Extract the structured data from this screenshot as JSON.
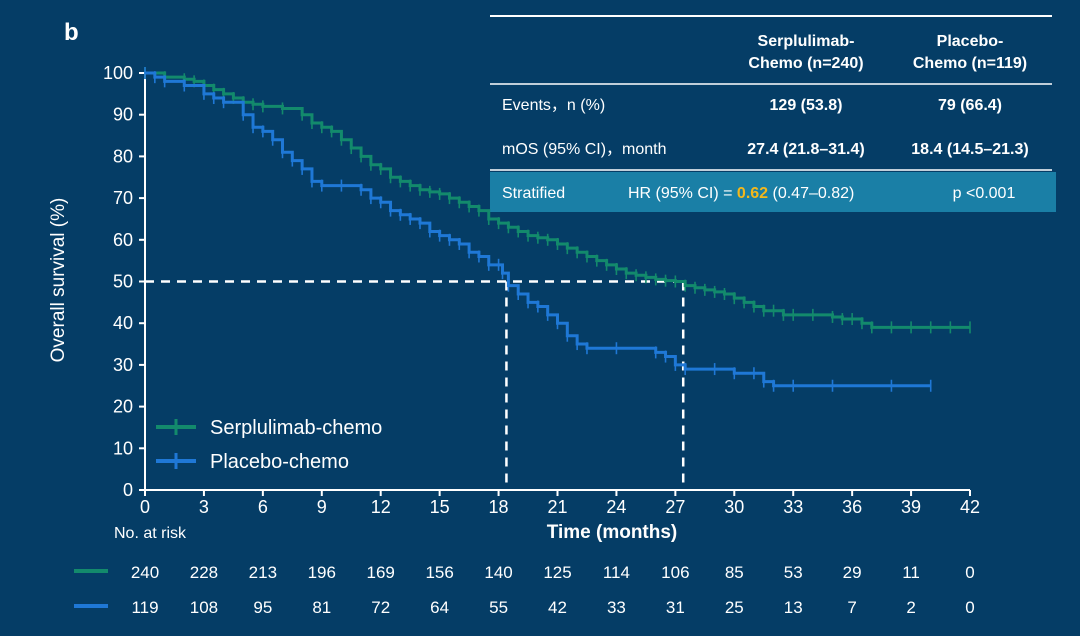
{
  "panel_label": "b",
  "colors": {
    "background": "#053d66",
    "serplulimab": "#138a6c",
    "placebo": "#1f78d6",
    "hr_highlight": "#f3b81c",
    "hr_row_bg": "#1a7fa6"
  },
  "table": {
    "header_serp_line1": "Serplulimab-",
    "header_serp_line2": "Chemo (n=240)",
    "header_plac_line1": "Placebo-",
    "header_plac_line2": "Chemo (n=119)",
    "rows": [
      {
        "label": "Events，n (%)",
        "serp": "129 (53.8)",
        "plac": "79 (66.4)"
      },
      {
        "label": "mOS (95% CI)，month",
        "serp": "27.4 (21.8–31.4)",
        "plac": "18.4 (14.5–21.3)"
      }
    ],
    "stratified": {
      "label": "Stratified",
      "hr_prefix": "HR (95% CI) = ",
      "hr_value": "0.62",
      "hr_ci": " (0.47–0.82)",
      "p": "p <0.001"
    }
  },
  "at_risk": {
    "title": "No. at risk",
    "serplulimab": [
      "240",
      "228",
      "213",
      "196",
      "169",
      "156",
      "140",
      "125",
      "114",
      "106",
      "85",
      "53",
      "29",
      "11",
      "0"
    ],
    "placebo": [
      "119",
      "108",
      "95",
      "81",
      "72",
      "64",
      "55",
      "42",
      "33",
      "31",
      "25",
      "13",
      "7",
      "2",
      "0"
    ]
  },
  "chart_data": {
    "type": "line",
    "xlabel": "Time (months)",
    "ylabel": "Overall survival (%)",
    "xlim": [
      0,
      42
    ],
    "ylim": [
      0,
      100
    ],
    "x_ticks": [
      "0",
      "3",
      "6",
      "9",
      "12",
      "15",
      "18",
      "21",
      "24",
      "27",
      "30",
      "33",
      "36",
      "39",
      "42"
    ],
    "y_ticks": [
      "0",
      "10",
      "20",
      "30",
      "40",
      "50",
      "60",
      "70",
      "80",
      "90",
      "100"
    ],
    "legend_position": "bottom-left",
    "series": [
      {
        "name": "Serplulimab-chemo",
        "color": "#138a6c",
        "median": 27.4,
        "x": [
          0,
          1,
          2,
          2.5,
          3,
          3.5,
          4,
          4.5,
          5,
          5.5,
          6,
          7,
          8,
          8.5,
          9,
          9.5,
          10,
          10.5,
          11,
          11.5,
          12,
          12.5,
          13,
          13.5,
          14,
          14.5,
          15,
          15.5,
          16,
          16.5,
          17,
          17.5,
          18,
          18.5,
          19,
          19.5,
          20,
          20.5,
          21,
          21.5,
          22,
          22.5,
          23,
          23.5,
          24,
          24.5,
          25,
          25.5,
          26,
          26.5,
          27,
          27.5,
          28,
          28.5,
          29,
          29.5,
          30,
          30.5,
          31,
          31.5,
          32,
          32.5,
          33,
          34,
          35,
          35.5,
          36,
          36.5,
          37,
          38,
          39,
          40,
          41,
          42
        ],
        "y": [
          100,
          99,
          98.5,
          98,
          97,
          96,
          95,
          94,
          93,
          92.5,
          92,
          91.5,
          90,
          88,
          87,
          86,
          84,
          82,
          80,
          78,
          77,
          75,
          74,
          73,
          72,
          71.5,
          71,
          70,
          69,
          68,
          67,
          65,
          64,
          63,
          62,
          61,
          60.5,
          60,
          59,
          58,
          57,
          56,
          55,
          54,
          53,
          52,
          51.5,
          51,
          50.5,
          50.2,
          50,
          49,
          48.5,
          48,
          47.5,
          47,
          46,
          45,
          44,
          43,
          43,
          42,
          42,
          42,
          41.5,
          41,
          41,
          40,
          39,
          39,
          39,
          39,
          39,
          39
        ]
      },
      {
        "name": "Placebo-chemo",
        "color": "#1f78d6",
        "median": 18.4,
        "x": [
          0,
          0.5,
          1,
          2,
          3,
          3.5,
          4,
          5,
          5.5,
          6,
          6.5,
          7,
          7.5,
          8,
          8.5,
          9,
          10,
          11,
          11.5,
          12,
          12.5,
          13,
          13.5,
          14,
          14.5,
          15,
          15.5,
          16,
          16.5,
          17,
          17.5,
          18,
          18.2,
          18.5,
          19,
          19.5,
          20,
          20.5,
          21,
          21.5,
          22,
          22.5,
          24,
          26,
          26.5,
          27,
          27.5,
          29,
          30,
          31,
          31.5,
          32,
          33,
          35,
          38,
          40
        ],
        "y": [
          100,
          99,
          98,
          97,
          95,
          94,
          93,
          90,
          87,
          86,
          84,
          81,
          79,
          77,
          74,
          73,
          73,
          72,
          70,
          69,
          67,
          66,
          65,
          64,
          62,
          61,
          60,
          59,
          57,
          56,
          54,
          54,
          52,
          49,
          47,
          45,
          44,
          42,
          40,
          37,
          35,
          34,
          34,
          33,
          32,
          30,
          29,
          29,
          28,
          28,
          26,
          25,
          25,
          25,
          25,
          25
        ]
      }
    ],
    "median_line_y": 50
  }
}
